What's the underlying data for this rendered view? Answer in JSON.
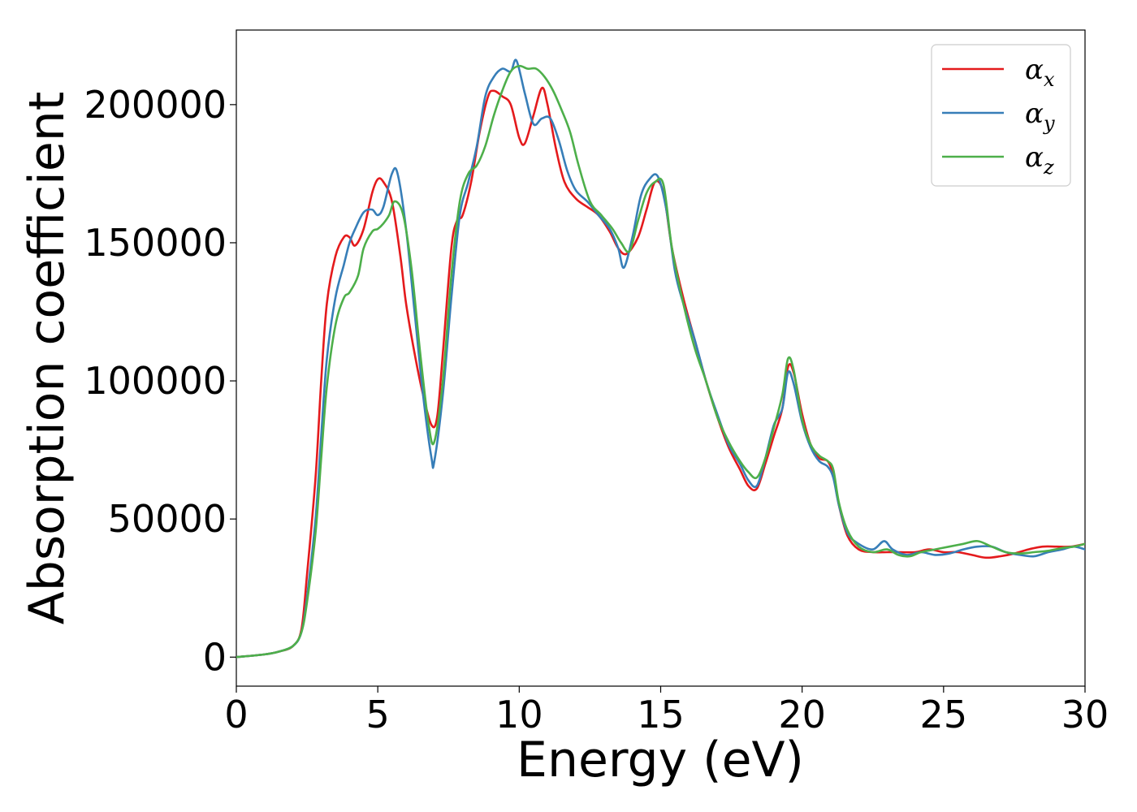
{
  "chart_data": {
    "type": "line",
    "xlabel": "Energy (eV)",
    "ylabel": "Absorption coefficient",
    "xlim": [
      0,
      30
    ],
    "ylim": [
      -10500,
      227000
    ],
    "x_ticks": [
      0,
      5,
      10,
      15,
      20,
      25,
      30
    ],
    "y_ticks": [
      0,
      50000,
      100000,
      150000,
      200000
    ],
    "grid": false,
    "legend_position": "top-right",
    "series": [
      {
        "name": "α_x",
        "label_base": "α",
        "label_sub": "x",
        "color": "#e41a1c",
        "x": [
          0,
          1,
          1.5,
          2,
          2.3,
          2.5,
          2.8,
          3.0,
          3.2,
          3.5,
          3.8,
          4.0,
          4.2,
          4.5,
          4.8,
          5.0,
          5.2,
          5.5,
          5.8,
          6.0,
          6.3,
          6.6,
          6.9,
          7.1,
          7.3,
          7.6,
          7.8,
          8.0,
          8.3,
          8.6,
          8.9,
          9.1,
          9.4,
          9.7,
          10.0,
          10.2,
          10.5,
          10.8,
          11.0,
          11.3,
          11.6,
          12.0,
          12.4,
          12.8,
          13.2,
          13.5,
          13.8,
          14.2,
          14.5,
          14.8,
          15.1,
          15.4,
          15.8,
          16.2,
          16.6,
          17.0,
          17.4,
          17.8,
          18.1,
          18.4,
          18.7,
          19.0,
          19.3,
          19.5,
          19.7,
          20.0,
          20.3,
          20.6,
          20.9,
          21.1,
          21.3,
          21.6,
          22.0,
          22.5,
          23.0,
          23.5,
          24.0,
          24.5,
          25.0,
          25.5,
          26.0,
          26.5,
          27.0,
          27.5,
          28.0,
          28.5,
          29.0,
          29.5,
          30.0
        ],
        "values": [
          0,
          1000,
          2000,
          4000,
          10000,
          30000,
          65000,
          100000,
          128000,
          145000,
          152000,
          152000,
          149000,
          155000,
          168000,
          173000,
          172000,
          165000,
          145000,
          128000,
          110000,
          95000,
          84000,
          87000,
          110000,
          148000,
          158000,
          160000,
          172000,
          190000,
          203000,
          205000,
          203000,
          200000,
          188000,
          186000,
          196000,
          206000,
          200000,
          184000,
          172000,
          166000,
          163000,
          160000,
          154000,
          148000,
          146000,
          152000,
          162000,
          172000,
          168000,
          148000,
          130000,
          115000,
          100000,
          87000,
          76000,
          68000,
          62000,
          61000,
          70000,
          80000,
          90000,
          105000,
          103000,
          88000,
          77000,
          72000,
          71000,
          66000,
          55000,
          44000,
          39000,
          38000,
          38000,
          38000,
          38000,
          39000,
          38000,
          38000,
          37000,
          36000,
          36500,
          37500,
          39000,
          40000,
          40000,
          40000,
          41000
        ]
      },
      {
        "name": "α_y",
        "label_base": "α",
        "label_sub": "y",
        "color": "#377eb8",
        "x": [
          0,
          1,
          1.5,
          2,
          2.3,
          2.5,
          2.8,
          3.0,
          3.2,
          3.5,
          3.8,
          4.0,
          4.2,
          4.5,
          4.8,
          5.0,
          5.2,
          5.5,
          5.7,
          6.0,
          6.3,
          6.6,
          6.9,
          7.0,
          7.3,
          7.6,
          7.9,
          8.2,
          8.5,
          8.8,
          9.1,
          9.4,
          9.7,
          9.9,
          10.2,
          10.5,
          10.8,
          11.1,
          11.4,
          11.7,
          12.0,
          12.4,
          12.8,
          13.2,
          13.5,
          13.7,
          14.0,
          14.3,
          14.6,
          14.9,
          15.2,
          15.5,
          15.8,
          16.2,
          16.6,
          17.0,
          17.4,
          17.8,
          18.1,
          18.4,
          18.7,
          19.0,
          19.3,
          19.5,
          19.7,
          20.0,
          20.3,
          20.6,
          20.9,
          21.1,
          21.3,
          21.6,
          22.0,
          22.5,
          22.9,
          23.2,
          23.7,
          24.2,
          24.7,
          25.2,
          25.7,
          26.2,
          26.7,
          27.2,
          27.7,
          28.2,
          28.7,
          29.2,
          29.6,
          30.0
        ],
        "values": [
          0,
          1000,
          2000,
          4000,
          9000,
          22000,
          50000,
          80000,
          108000,
          130000,
          142000,
          150000,
          155000,
          161000,
          162000,
          160000,
          163000,
          175000,
          175000,
          155000,
          125000,
          95000,
          72000,
          71000,
          95000,
          130000,
          160000,
          172000,
          185000,
          203000,
          210000,
          213000,
          212000,
          216000,
          204000,
          193000,
          195000,
          195000,
          187000,
          176000,
          169000,
          165000,
          160000,
          155000,
          148000,
          141000,
          152000,
          167000,
          173000,
          174000,
          162000,
          140000,
          128000,
          115000,
          100000,
          88000,
          77000,
          70000,
          64000,
          62000,
          72000,
          84000,
          90000,
          103000,
          99000,
          85000,
          76000,
          71000,
          69000,
          65000,
          55000,
          45000,
          41000,
          39000,
          42000,
          39000,
          37000,
          38000,
          37000,
          37500,
          39000,
          40000,
          40000,
          38000,
          37000,
          36500,
          38000,
          39000,
          40000,
          39000
        ]
      },
      {
        "name": "α_z",
        "label_base": "α",
        "label_sub": "z",
        "color": "#4daf4a",
        "x": [
          0,
          1,
          1.5,
          2,
          2.3,
          2.5,
          2.8,
          3.0,
          3.2,
          3.5,
          3.8,
          4.0,
          4.3,
          4.5,
          4.8,
          5.0,
          5.2,
          5.4,
          5.6,
          5.9,
          6.2,
          6.5,
          6.8,
          7.0,
          7.3,
          7.6,
          7.9,
          8.2,
          8.5,
          8.8,
          9.1,
          9.4,
          9.7,
          10.0,
          10.3,
          10.6,
          10.9,
          11.2,
          11.5,
          11.8,
          12.1,
          12.5,
          12.9,
          13.3,
          13.6,
          13.9,
          14.2,
          14.5,
          14.8,
          15.1,
          15.4,
          15.8,
          16.2,
          16.6,
          17.0,
          17.4,
          17.8,
          18.1,
          18.4,
          18.7,
          19.0,
          19.3,
          19.5,
          19.7,
          20.0,
          20.3,
          20.6,
          20.9,
          21.1,
          21.3,
          21.6,
          22.0,
          22.5,
          23.0,
          23.4,
          23.8,
          24.2,
          24.7,
          25.2,
          25.7,
          26.2,
          26.7,
          27.2,
          27.7,
          28.2,
          28.7,
          29.2,
          29.6,
          30.0
        ],
        "values": [
          0,
          1000,
          2000,
          4000,
          9000,
          20000,
          45000,
          72000,
          98000,
          120000,
          130000,
          132000,
          138000,
          148000,
          154000,
          155000,
          157000,
          160000,
          165000,
          160000,
          140000,
          110000,
          84000,
          78000,
          100000,
          138000,
          165000,
          175000,
          178000,
          185000,
          196000,
          205000,
          212000,
          214000,
          213000,
          213000,
          210000,
          205000,
          198000,
          190000,
          178000,
          165000,
          160000,
          155000,
          150000,
          147000,
          158000,
          168000,
          172000,
          171000,
          148000,
          128000,
          112000,
          100000,
          87000,
          78000,
          71000,
          67000,
          65000,
          72000,
          83000,
          95000,
          108000,
          104000,
          86000,
          77000,
          73000,
          71000,
          68000,
          56000,
          46000,
          40000,
          38000,
          39000,
          37000,
          36500,
          38000,
          39000,
          40000,
          41000,
          42000,
          40000,
          38000,
          37500,
          38000,
          38500,
          39500,
          40000,
          41000
        ]
      }
    ]
  }
}
